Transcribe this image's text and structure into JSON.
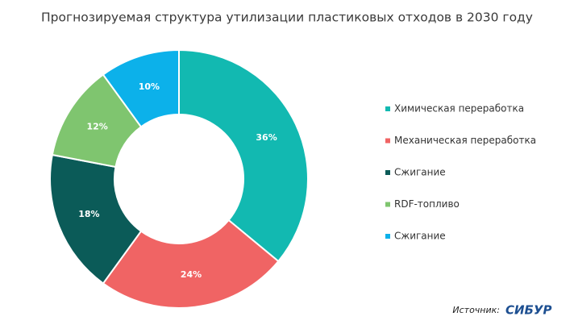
{
  "chart_data": {
    "type": "donut",
    "title": "Прогнозируемая  структура  утилизации  пластиковых  отходов  в  2030  году",
    "categories": [
      "Химическая переработка",
      "Механическая переработка",
      "Сжигание",
      "RDF-топливо",
      "Сжигание"
    ],
    "values": [
      36,
      24,
      18,
      12,
      10
    ],
    "value_labels": [
      "36%",
      "24%",
      "18%",
      "12%",
      "10%"
    ],
    "colors": [
      "#12b9b1",
      "#f06464",
      "#0b5b58",
      "#7fc56f",
      "#0cb1ea"
    ],
    "legend": "right",
    "source": "Источник:",
    "logo": "СИБУР"
  }
}
